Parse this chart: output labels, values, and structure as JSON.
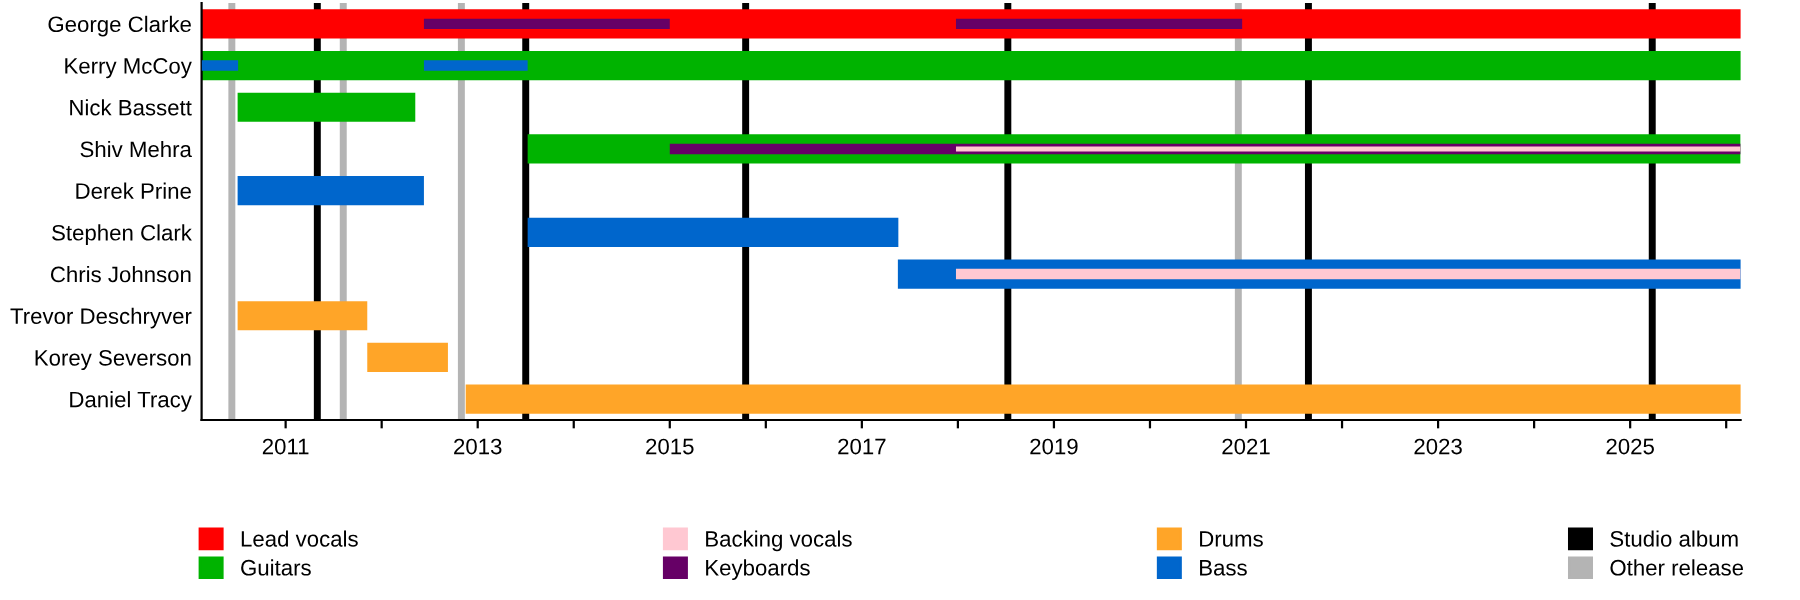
{
  "chart_data": {
    "type": "bar",
    "orientation": "horizontal",
    "categories": [
      "George Clarke",
      "Kerry McCoy",
      "Nick Bassett",
      "Shiv Mehra",
      "Derek Prine",
      "Stephen Clark",
      "Chris Johnson",
      "Trevor Deschryver",
      "Korey Severson",
      "Daniel Tracy"
    ],
    "series": [
      {
        "name": "Lead vocals",
        "color": "#ff0000",
        "base": [
          2010.125,
          null,
          null,
          null,
          null,
          null,
          null,
          null,
          null,
          null
        ],
        "values": [
          16.03,
          null,
          null,
          null,
          null,
          null,
          null,
          null,
          null,
          null
        ]
      },
      {
        "name": "Guitars",
        "color": "#00b300",
        "base": [
          null,
          2010.125,
          2010.5,
          2013.52,
          null,
          null,
          null,
          null,
          null,
          null
        ],
        "values": [
          null,
          16.03,
          1.85,
          12.63,
          null,
          null,
          null,
          null,
          null,
          null
        ]
      },
      {
        "name": "Backing vocals",
        "color": "#ffc8d2",
        "base": [
          null,
          null,
          null,
          2017.98,
          null,
          null,
          2017.98,
          null,
          null,
          null
        ],
        "values": [
          null,
          null,
          null,
          8.17,
          null,
          null,
          8.17,
          null,
          null,
          null
        ]
      },
      {
        "name": "Keyboards",
        "color": "#660066",
        "base": [
          2012.44,
          null,
          null,
          2015.0,
          null,
          null,
          null,
          null,
          null,
          null
        ],
        "values": [
          2.56,
          null,
          null,
          11.15,
          null,
          null,
          null,
          null,
          null,
          null
        ]
      },
      {
        "color": "#660066",
        "base": [
          2017.98,
          null,
          null,
          null,
          null,
          null,
          null,
          null,
          null,
          null
        ],
        "values": [
          2.98,
          null,
          null,
          null,
          null,
          null,
          null,
          null,
          null,
          null
        ]
      },
      {
        "name": "Drums",
        "color": "#ffa528",
        "base": [
          null,
          null,
          null,
          null,
          null,
          null,
          null,
          2010.5,
          2011.85,
          2012.875
        ],
        "values": [
          null,
          null,
          null,
          null,
          null,
          null,
          null,
          1.35,
          0.84,
          13.28
        ]
      },
      {
        "name": "Bass",
        "color": "#0066cc",
        "base": [
          null,
          2010.125,
          null,
          null,
          2010.5,
          2013.52,
          2017.375,
          null,
          null,
          null
        ],
        "values": [
          null,
          0.38,
          null,
          null,
          1.94,
          3.86,
          8.78,
          null,
          null,
          null
        ]
      },
      {
        "color": "#0066cc",
        "base": [
          null,
          2012.44,
          null,
          null,
          null,
          null,
          null,
          null,
          null,
          null
        ],
        "values": [
          null,
          1.08,
          null,
          null,
          null,
          null,
          null,
          null,
          null,
          null
        ]
      }
    ],
    "ref_lines": [
      {
        "axis": "x",
        "value": 2011.33,
        "label": "Studio album",
        "color": "#000000"
      },
      {
        "axis": "x",
        "value": 2013.5,
        "color": "#000000"
      },
      {
        "axis": "x",
        "value": 2015.79,
        "color": "#000000"
      },
      {
        "axis": "x",
        "value": 2018.52,
        "color": "#000000"
      },
      {
        "axis": "x",
        "value": 2021.65,
        "color": "#000000"
      },
      {
        "axis": "x",
        "value": 2025.23,
        "color": "#000000"
      },
      {
        "axis": "x",
        "value": 2010.44,
        "label": "Other release",
        "color": "#b4b4b4"
      },
      {
        "axis": "x",
        "value": 2011.6,
        "color": "#b4b4b4"
      },
      {
        "axis": "x",
        "value": 2012.83,
        "color": "#b4b4b4"
      },
      {
        "axis": "x",
        "value": 2020.92,
        "color": "#b4b4b4"
      }
    ],
    "xlim": [
      2010.125,
      2026.15
    ],
    "xticks": [
      2011,
      {
        "value": 2012,
        "label": null
      },
      2013,
      {
        "value": 2014,
        "label": null
      },
      2015,
      {
        "value": 2016,
        "label": null
      },
      2017,
      {
        "value": 2018,
        "label": null
      },
      2019,
      {
        "value": 2020,
        "label": null
      },
      2021,
      {
        "value": 2022,
        "label": null
      },
      2023,
      {
        "value": 2024,
        "label": null
      },
      2025,
      {
        "value": 2026,
        "label": null
      }
    ],
    "legend": "bottom",
    "grid": false
  }
}
